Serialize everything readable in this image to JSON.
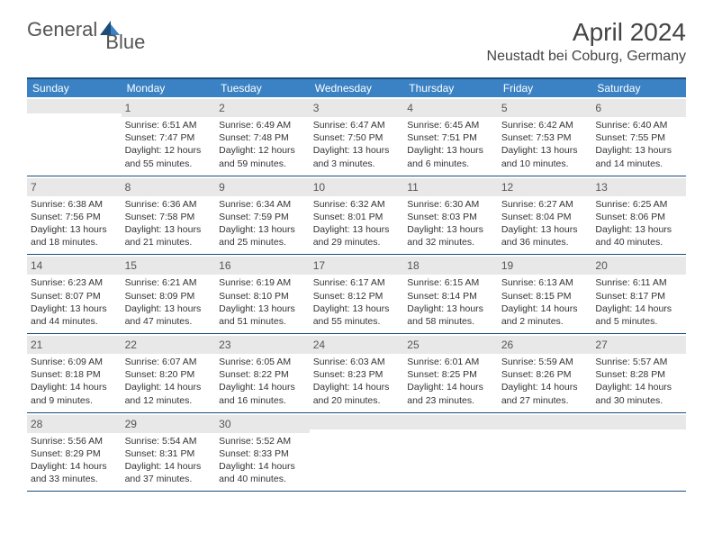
{
  "logo": {
    "text1": "General",
    "text2": "Blue"
  },
  "title": "April 2024",
  "location": "Neustadt bei Coburg, Germany",
  "weekdays": [
    "Sunday",
    "Monday",
    "Tuesday",
    "Wednesday",
    "Thursday",
    "Friday",
    "Saturday"
  ],
  "colors": {
    "header_bg": "#3b82c4",
    "border": "#1a4d7a",
    "daynum_bg": "#e8e8e8",
    "text": "#333333"
  },
  "start_offset": 1,
  "days": [
    {
      "n": "1",
      "sunrise": "6:51 AM",
      "sunset": "7:47 PM",
      "daylight": "12 hours and 55 minutes."
    },
    {
      "n": "2",
      "sunrise": "6:49 AM",
      "sunset": "7:48 PM",
      "daylight": "12 hours and 59 minutes."
    },
    {
      "n": "3",
      "sunrise": "6:47 AM",
      "sunset": "7:50 PM",
      "daylight": "13 hours and 3 minutes."
    },
    {
      "n": "4",
      "sunrise": "6:45 AM",
      "sunset": "7:51 PM",
      "daylight": "13 hours and 6 minutes."
    },
    {
      "n": "5",
      "sunrise": "6:42 AM",
      "sunset": "7:53 PM",
      "daylight": "13 hours and 10 minutes."
    },
    {
      "n": "6",
      "sunrise": "6:40 AM",
      "sunset": "7:55 PM",
      "daylight": "13 hours and 14 minutes."
    },
    {
      "n": "7",
      "sunrise": "6:38 AM",
      "sunset": "7:56 PM",
      "daylight": "13 hours and 18 minutes."
    },
    {
      "n": "8",
      "sunrise": "6:36 AM",
      "sunset": "7:58 PM",
      "daylight": "13 hours and 21 minutes."
    },
    {
      "n": "9",
      "sunrise": "6:34 AM",
      "sunset": "7:59 PM",
      "daylight": "13 hours and 25 minutes."
    },
    {
      "n": "10",
      "sunrise": "6:32 AM",
      "sunset": "8:01 PM",
      "daylight": "13 hours and 29 minutes."
    },
    {
      "n": "11",
      "sunrise": "6:30 AM",
      "sunset": "8:03 PM",
      "daylight": "13 hours and 32 minutes."
    },
    {
      "n": "12",
      "sunrise": "6:27 AM",
      "sunset": "8:04 PM",
      "daylight": "13 hours and 36 minutes."
    },
    {
      "n": "13",
      "sunrise": "6:25 AM",
      "sunset": "8:06 PM",
      "daylight": "13 hours and 40 minutes."
    },
    {
      "n": "14",
      "sunrise": "6:23 AM",
      "sunset": "8:07 PM",
      "daylight": "13 hours and 44 minutes."
    },
    {
      "n": "15",
      "sunrise": "6:21 AM",
      "sunset": "8:09 PM",
      "daylight": "13 hours and 47 minutes."
    },
    {
      "n": "16",
      "sunrise": "6:19 AM",
      "sunset": "8:10 PM",
      "daylight": "13 hours and 51 minutes."
    },
    {
      "n": "17",
      "sunrise": "6:17 AM",
      "sunset": "8:12 PM",
      "daylight": "13 hours and 55 minutes."
    },
    {
      "n": "18",
      "sunrise": "6:15 AM",
      "sunset": "8:14 PM",
      "daylight": "13 hours and 58 minutes."
    },
    {
      "n": "19",
      "sunrise": "6:13 AM",
      "sunset": "8:15 PM",
      "daylight": "14 hours and 2 minutes."
    },
    {
      "n": "20",
      "sunrise": "6:11 AM",
      "sunset": "8:17 PM",
      "daylight": "14 hours and 5 minutes."
    },
    {
      "n": "21",
      "sunrise": "6:09 AM",
      "sunset": "8:18 PM",
      "daylight": "14 hours and 9 minutes."
    },
    {
      "n": "22",
      "sunrise": "6:07 AM",
      "sunset": "8:20 PM",
      "daylight": "14 hours and 12 minutes."
    },
    {
      "n": "23",
      "sunrise": "6:05 AM",
      "sunset": "8:22 PM",
      "daylight": "14 hours and 16 minutes."
    },
    {
      "n": "24",
      "sunrise": "6:03 AM",
      "sunset": "8:23 PM",
      "daylight": "14 hours and 20 minutes."
    },
    {
      "n": "25",
      "sunrise": "6:01 AM",
      "sunset": "8:25 PM",
      "daylight": "14 hours and 23 minutes."
    },
    {
      "n": "26",
      "sunrise": "5:59 AM",
      "sunset": "8:26 PM",
      "daylight": "14 hours and 27 minutes."
    },
    {
      "n": "27",
      "sunrise": "5:57 AM",
      "sunset": "8:28 PM",
      "daylight": "14 hours and 30 minutes."
    },
    {
      "n": "28",
      "sunrise": "5:56 AM",
      "sunset": "8:29 PM",
      "daylight": "14 hours and 33 minutes."
    },
    {
      "n": "29",
      "sunrise": "5:54 AM",
      "sunset": "8:31 PM",
      "daylight": "14 hours and 37 minutes."
    },
    {
      "n": "30",
      "sunrise": "5:52 AM",
      "sunset": "8:33 PM",
      "daylight": "14 hours and 40 minutes."
    }
  ]
}
